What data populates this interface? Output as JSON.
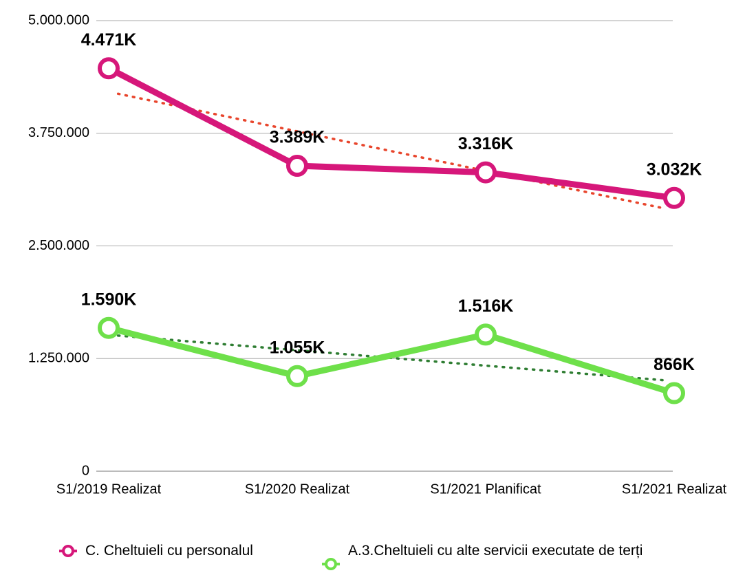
{
  "chart_data": {
    "type": "line",
    "categories": [
      "S1/2019 Realizat",
      "S1/2020 Realizat",
      "S1/2021 Planificat",
      "S1/2021 Realizat"
    ],
    "series": [
      {
        "name": "C. Cheltuieli cu personalul",
        "color": "#d6177a",
        "trendline": true,
        "trend_color": "#e8452c",
        "values": [
          4471000,
          3389000,
          3316000,
          3032000
        ],
        "value_labels": [
          "4.471K",
          "3.389K",
          "3.316K",
          "3.032K"
        ]
      },
      {
        "name": "A.3.Cheltuieli cu alte servicii executate de terți",
        "color": "#6ee04a",
        "trendline": true,
        "trend_color": "#2e7d32",
        "values": [
          1590000,
          1055000,
          1516000,
          866000
        ],
        "value_labels": [
          "1.590K",
          "1.055K",
          "1.516K",
          "866K"
        ]
      }
    ],
    "ylim": [
      0,
      5000000
    ],
    "yticks": [
      0,
      {
        "value": 1250000,
        "label": "1.250.000"
      },
      {
        "value": 2500000,
        "label": "2.500.000"
      },
      {
        "value": 3750000,
        "label": "3.750.000"
      },
      {
        "value": 5000000,
        "label": "5.000.000"
      }
    ],
    "grid": true,
    "legend": "bottom"
  }
}
